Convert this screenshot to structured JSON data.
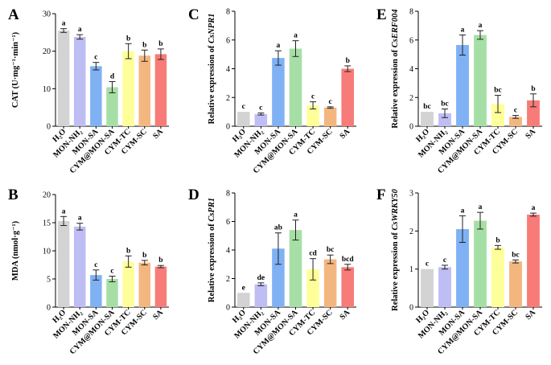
{
  "chart_data": [
    {
      "panel": "A",
      "type": "bar",
      "ylabel": "CAT (U·mg⁻¹·min⁻¹)",
      "ylim": [
        0,
        30
      ],
      "yticks": [
        0,
        10,
        20,
        30
      ],
      "categories": [
        "H₂O",
        "MON-NH₂",
        "MON-SA",
        "CYM@MON-SA",
        "CYM-TC",
        "CYM-SC",
        "SA"
      ],
      "values": [
        25.5,
        23.8,
        16.0,
        10.4,
        20.0,
        18.8,
        19.2
      ],
      "errors": [
        0.5,
        0.6,
        1.0,
        1.5,
        2.0,
        1.5,
        1.4
      ],
      "letters": [
        "a",
        "a",
        "c",
        "d",
        "b",
        "b",
        "b"
      ]
    },
    {
      "panel": "B",
      "type": "bar",
      "ylabel": "MDA (nmol·g⁻¹)",
      "ylim": [
        0,
        20
      ],
      "yticks": [
        0,
        5,
        10,
        15,
        20
      ],
      "categories": [
        "H₂O",
        "MON-NH₂",
        "MON-SA",
        "CYM@MON-SA",
        "CYM-TC",
        "CYM-SC",
        "SA"
      ],
      "values": [
        15.3,
        14.3,
        5.7,
        5.0,
        8.1,
        7.9,
        7.2
      ],
      "errors": [
        0.8,
        0.6,
        0.9,
        0.5,
        1.0,
        0.4,
        0.2
      ],
      "letters": [
        "a",
        "a",
        "c",
        "c",
        "b",
        "b",
        "b"
      ]
    },
    {
      "panel": "C",
      "type": "bar",
      "ylabel": "Relative expression of CsNPR1",
      "ylabel_plain": "Relative expression of ",
      "ylabel_gene": "CsNPR1",
      "ylim": [
        0,
        8
      ],
      "yticks": [
        0,
        2,
        4,
        6,
        8
      ],
      "categories": [
        "H₂O",
        "MON-NH₂",
        "MON-SA",
        "CYM@MON-SA",
        "CYM-TC",
        "CYM-SC",
        "SA"
      ],
      "values": [
        1.0,
        0.85,
        4.75,
        5.4,
        1.45,
        1.3,
        4.0
      ],
      "errors": [
        0.0,
        0.07,
        0.5,
        0.55,
        0.25,
        0.05,
        0.2
      ],
      "letters": [
        "c",
        "c",
        "a",
        "a",
        "c",
        "c",
        "b"
      ]
    },
    {
      "panel": "D",
      "type": "bar",
      "ylabel": "Relative expression of CsPR1",
      "ylabel_plain": "Relative expression of ",
      "ylabel_gene": "CsPR1",
      "ylim": [
        0,
        8
      ],
      "yticks": [
        0,
        2,
        4,
        6,
        8
      ],
      "categories": [
        "H₂O",
        "MON-NH₂",
        "MON-SA",
        "CYM@MON-SA",
        "CYM-TC",
        "CYM-SC",
        "SA"
      ],
      "values": [
        1.0,
        1.6,
        4.1,
        5.4,
        2.65,
        3.35,
        2.8
      ],
      "errors": [
        0.0,
        0.1,
        1.1,
        0.7,
        0.75,
        0.3,
        0.2
      ],
      "letters": [
        "e",
        "de",
        "ab",
        "a",
        "cd",
        "bc",
        "bcd"
      ]
    },
    {
      "panel": "E",
      "type": "bar",
      "ylabel": "Relative expression of CsERF004",
      "ylabel_plain": "Relative expression of ",
      "ylabel_gene": "CsERF004",
      "ylim": [
        0,
        8
      ],
      "yticks": [
        0,
        2,
        4,
        6,
        8
      ],
      "categories": [
        "H₂O",
        "MON-NH₂",
        "MON-SA",
        "CYM@MON-SA",
        "CYM-TC",
        "CYM-SC",
        "SA"
      ],
      "values": [
        1.0,
        0.9,
        5.65,
        6.35,
        1.55,
        0.65,
        1.8
      ],
      "errors": [
        0.0,
        0.3,
        0.7,
        0.3,
        0.6,
        0.1,
        0.45
      ],
      "letters": [
        "bc",
        "bc",
        "a",
        "a",
        "bc",
        "c",
        "b"
      ]
    },
    {
      "panel": "F",
      "type": "bar",
      "ylabel": "Relative expression of CsWRKY50",
      "ylabel_plain": "Relative expression of ",
      "ylabel_gene": "CsWRKY50",
      "ylim": [
        0,
        3
      ],
      "yticks": [
        0,
        1,
        2,
        3
      ],
      "categories": [
        "H₂O",
        "MON-NH₂",
        "MON-SA",
        "CYM@MON-SA",
        "CYM-TC",
        "CYM-SC",
        "SA"
      ],
      "values": [
        1.0,
        1.05,
        2.05,
        2.27,
        1.57,
        1.2,
        2.43
      ],
      "errors": [
        0.0,
        0.05,
        0.35,
        0.22,
        0.05,
        0.04,
        0.04
      ],
      "letters": [
        "c",
        "c",
        "a",
        "a",
        "b",
        "bc",
        "a"
      ]
    }
  ],
  "bar_colors": [
    "#d3d3d3",
    "#bebdf4",
    "#7fb1f4",
    "#a6dfa6",
    "#ffff99",
    "#f4b67f",
    "#f77b78"
  ]
}
